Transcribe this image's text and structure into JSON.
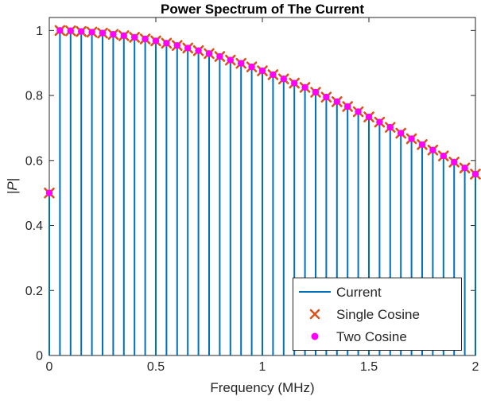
{
  "title": "Power Spectrum of The Current",
  "axes": {
    "xlabel": "Frequency (MHz)",
    "ylabel": "|P|"
  },
  "legend": {
    "items": [
      {
        "label": "Current",
        "type": "line",
        "color": "#0072BD"
      },
      {
        "label": "Single Cosine",
        "type": "cross",
        "color": "#D95319"
      },
      {
        "label": "Two Cosine",
        "type": "dot",
        "color": "#FF00FF"
      }
    ]
  },
  "chart_data": {
    "type": "stem",
    "title": "Power Spectrum of The Current",
    "xlabel": "Frequency (MHz)",
    "ylabel": "|P|",
    "xlim": [
      0,
      2
    ],
    "ylim": [
      0,
      1.04
    ],
    "grid": false,
    "legend_position": "lower-right-inside",
    "x": [
      0,
      0.05,
      0.1,
      0.15,
      0.2,
      0.25,
      0.3,
      0.35,
      0.4,
      0.45,
      0.5,
      0.55,
      0.6,
      0.65,
      0.7,
      0.75,
      0.8,
      0.85,
      0.9,
      0.95,
      1,
      1.05,
      1.1,
      1.15,
      1.2,
      1.25,
      1.3,
      1.35,
      1.4,
      1.45,
      1.5,
      1.55,
      1.6,
      1.65,
      1.7,
      1.75,
      1.8,
      1.85,
      1.9,
      1.95,
      2
    ],
    "values": [
      0.5,
      1,
      0.999,
      0.997,
      0.995,
      0.992,
      0.988,
      0.984,
      0.979,
      0.974,
      0.968,
      0.961,
      0.954,
      0.946,
      0.938,
      0.929,
      0.92,
      0.909,
      0.899,
      0.888,
      0.876,
      0.864,
      0.851,
      0.838,
      0.825,
      0.81,
      0.795,
      0.781,
      0.766,
      0.75,
      0.734,
      0.718,
      0.702,
      0.684,
      0.667,
      0.649,
      0.632,
      0.614,
      0.595,
      0.577,
      0.558
    ],
    "series": [
      {
        "name": "Current",
        "marker": "stem",
        "color": "#0072BD",
        "values_ref": "values"
      },
      {
        "name": "Single Cosine",
        "marker": "x",
        "color": "#D95319",
        "values_ref": "values"
      },
      {
        "name": "Two Cosine",
        "marker": "dot",
        "color": "#FF00FF",
        "values_ref": "values"
      }
    ],
    "xticks": {
      "values": [
        0,
        0.5,
        1,
        1.5,
        2
      ],
      "labels": [
        "0",
        "0.5",
        "1",
        "1.5",
        "2"
      ]
    },
    "yticks": {
      "values": [
        0,
        0.2,
        0.4,
        0.6,
        0.8,
        1
      ],
      "labels": [
        "0",
        "0.2",
        "0.4",
        "0.6",
        "0.8",
        "1"
      ]
    },
    "axis_color": "#262626"
  }
}
